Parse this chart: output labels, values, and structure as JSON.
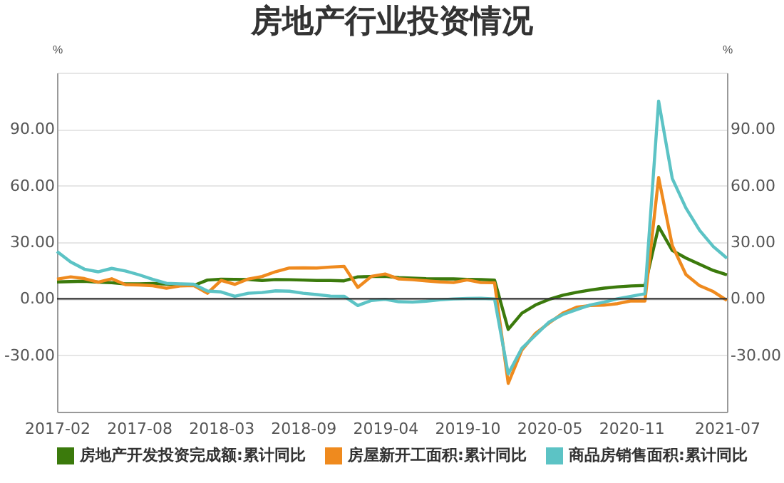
{
  "chart_data": {
    "type": "line",
    "title": "房地产行业投资情况",
    "categories": [
      "2017-02",
      null,
      null,
      null,
      null,
      null,
      "2017-08",
      null,
      null,
      null,
      null,
      null,
      "2018-03",
      null,
      null,
      null,
      null,
      null,
      "2018-09",
      null,
      null,
      null,
      null,
      null,
      "2019-04",
      null,
      null,
      null,
      null,
      null,
      "2019-10",
      null,
      null,
      null,
      null,
      null,
      "2020-05",
      null,
      null,
      null,
      null,
      null,
      "2020-11",
      null,
      null,
      null,
      null,
      null,
      null,
      "2021-07"
    ],
    "series": [
      {
        "name": "房地产开发投资完成额:累计同比",
        "color": "#3b7a0c",
        "values": [
          8.9,
          9.1,
          9.3,
          8.8,
          8.5,
          7.9,
          7.9,
          8.1,
          7.8,
          7.5,
          7.0,
          9.9,
          10.4,
          10.3,
          10.2,
          9.7,
          10.2,
          10.1,
          9.9,
          9.7,
          9.7,
          9.5,
          11.6,
          11.8,
          11.9,
          11.2,
          10.9,
          10.6,
          10.5,
          10.5,
          10.3,
          10.2,
          9.9,
          -16.3,
          -7.7,
          -3.3,
          -0.3,
          1.9,
          3.4,
          4.6,
          5.6,
          6.3,
          6.8,
          7.0,
          38.3,
          25.6,
          21.6,
          18.3,
          15.0,
          12.7
        ]
      },
      {
        "name": "房屋新开工面积:累计同比",
        "color": "#ef8a1e",
        "values": [
          10.4,
          11.6,
          10.7,
          8.8,
          10.6,
          7.5,
          7.3,
          6.9,
          5.6,
          6.8,
          7.0,
          2.9,
          9.7,
          7.6,
          10.5,
          11.8,
          14.4,
          16.3,
          16.4,
          16.3,
          16.8,
          17.2,
          6.0,
          11.9,
          13.1,
          10.5,
          10.1,
          9.5,
          8.9,
          8.6,
          10.0,
          8.6,
          8.5,
          -44.9,
          -27.2,
          -18.4,
          -12.8,
          -7.6,
          -4.5,
          -3.6,
          -3.4,
          -2.6,
          -1.1,
          -1.2,
          64.3,
          28.2,
          12.8,
          6.9,
          3.8,
          -0.9
        ]
      },
      {
        "name": "商品房销售面积:累计同比",
        "color": "#5cc3c5",
        "values": [
          25.1,
          19.5,
          15.7,
          14.3,
          16.1,
          14.7,
          12.7,
          10.3,
          8.2,
          7.9,
          7.7,
          4.1,
          3.6,
          1.3,
          2.9,
          3.3,
          4.2,
          4.0,
          2.9,
          2.2,
          1.4,
          1.3,
          -3.6,
          -0.9,
          -0.3,
          -1.6,
          -1.8,
          -1.3,
          -0.6,
          -0.1,
          0.1,
          0.2,
          -0.1,
          -39.9,
          -26.3,
          -19.3,
          -12.3,
          -8.4,
          -5.8,
          -3.3,
          -1.8,
          0.0,
          1.3,
          2.6,
          104.9,
          63.8,
          48.1,
          36.3,
          27.7,
          21.5
        ]
      }
    ],
    "ylabel": "%",
    "y2label": "%",
    "ylim": [
      -60,
      120
    ],
    "yticks": [
      {
        "value": -60,
        "label": null
      },
      {
        "value": -30,
        "label": "-30.00"
      },
      {
        "value": 0,
        "label": "0.00"
      },
      {
        "value": 30,
        "label": "30.00"
      },
      {
        "value": 60,
        "label": "60.00"
      },
      {
        "value": 90,
        "label": "90.00"
      },
      {
        "value": 120,
        "label": null
      }
    ],
    "y2lim": [
      -60,
      120
    ],
    "y2ticks": [
      {
        "value": -60,
        "label": null
      },
      {
        "value": -30,
        "label": "-30.00"
      },
      {
        "value": 0,
        "label": "0.00"
      },
      {
        "value": 30,
        "label": "30.00"
      },
      {
        "value": 60,
        "label": "60.00"
      },
      {
        "value": 90,
        "label": "90.00"
      },
      {
        "value": 120,
        "label": null
      }
    ],
    "ref_lines": [
      {
        "axis": "y",
        "value": 0,
        "color": "#333333"
      }
    ],
    "grid": "y",
    "legend": "bottom",
    "marker": "none",
    "line_style": "solid"
  }
}
